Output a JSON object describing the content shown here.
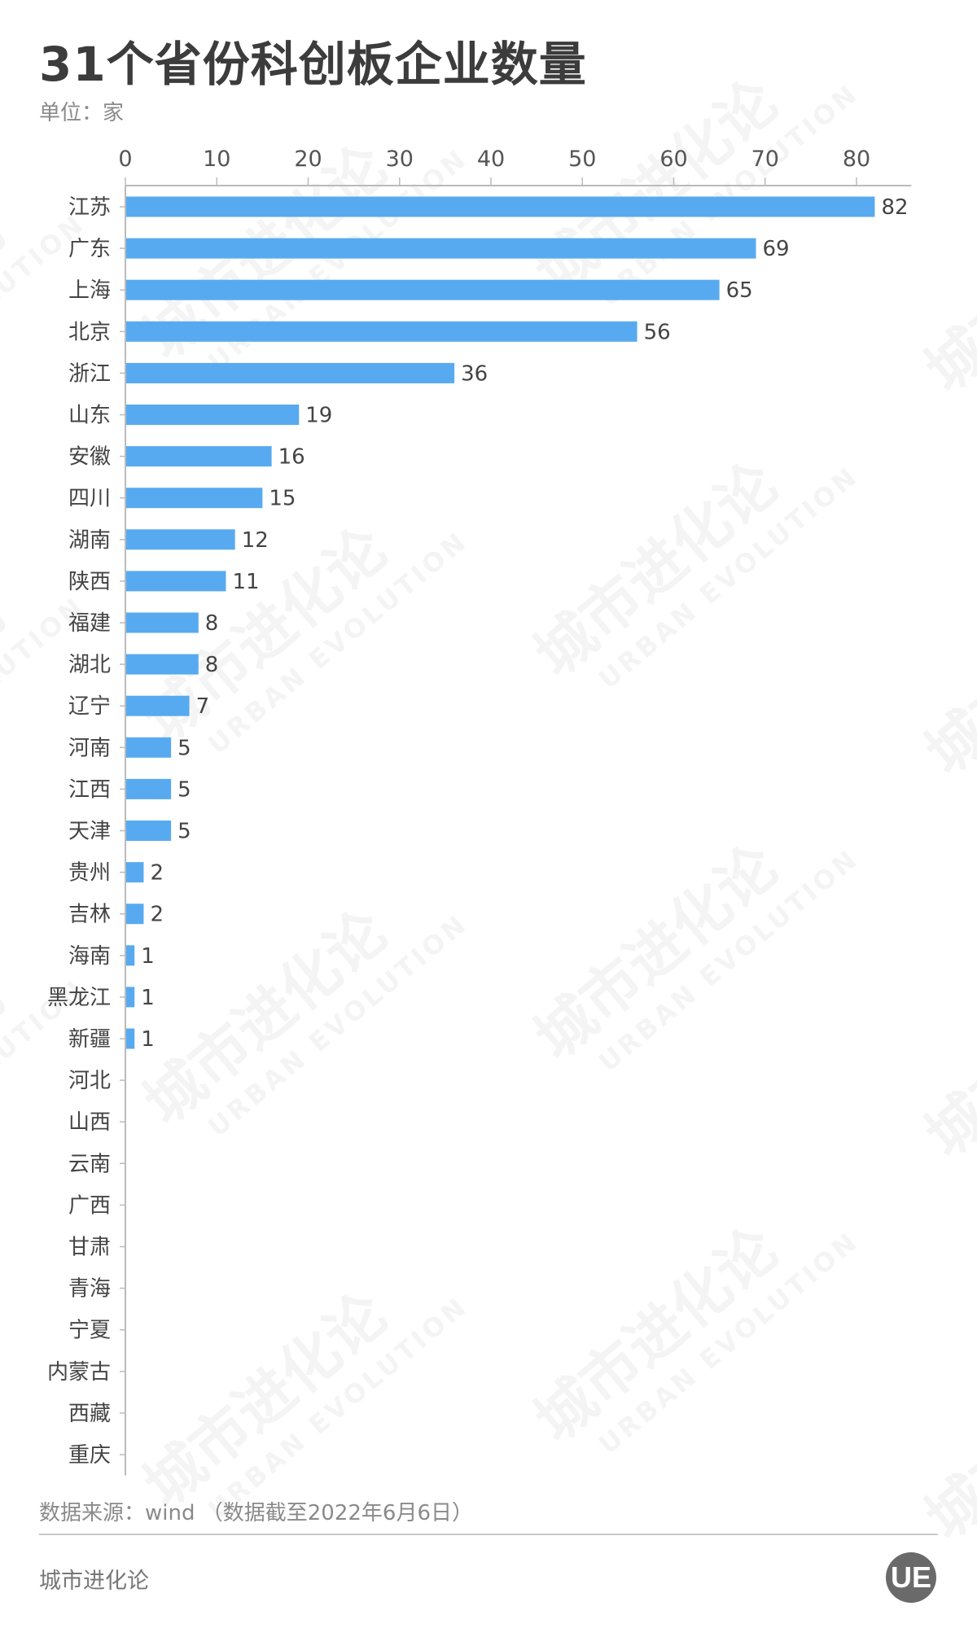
{
  "title": "31个省份科创板企业数量",
  "unit": "单位：家",
  "source": "数据来源：wind （数据截至2022年6月6日）",
  "brand": "城市进化论",
  "logo_text": "UE",
  "watermark": {
    "cn": "城市进化论",
    "en": "URBAN EVOLUTION"
  },
  "colors": {
    "bar": "#58aaf0",
    "text": "#3c3c3c",
    "axis": "#bbbbbb"
  },
  "chart_data": {
    "type": "bar",
    "orientation": "horizontal",
    "xlim": [
      0,
      86
    ],
    "ticks": [
      0,
      10,
      20,
      30,
      40,
      50,
      60,
      70,
      80
    ],
    "tick_position": "top",
    "grid": false,
    "categories": [
      "江苏",
      "广东",
      "上海",
      "北京",
      "浙江",
      "山东",
      "安徽",
      "四川",
      "湖南",
      "陕西",
      "福建",
      "湖北",
      "辽宁",
      "河南",
      "江西",
      "天津",
      "贵州",
      "吉林",
      "海南",
      "黑龙江",
      "新疆",
      "河北",
      "山西",
      "云南",
      "广西",
      "甘肃",
      "青海",
      "宁夏",
      "内蒙古",
      "西藏",
      "重庆"
    ],
    "values": [
      82,
      69,
      65,
      56,
      36,
      19,
      16,
      15,
      12,
      11,
      8,
      8,
      7,
      5,
      5,
      5,
      2,
      2,
      1,
      1,
      1,
      0,
      0,
      0,
      0,
      0,
      0,
      0,
      0,
      0,
      0
    ],
    "data_labels_shown_for_nonzero": true
  }
}
